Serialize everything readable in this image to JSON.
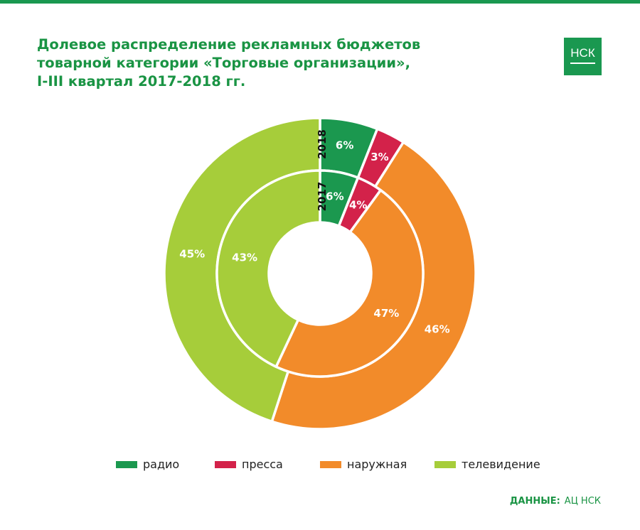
{
  "title_lines": [
    "Долевое распределение рекламных бюджетов",
    "товарной категории «Торговые организации»,",
    "I-III квартал 2017-2018 гг."
  ],
  "logo": "НСК",
  "source": {
    "label": "ДАННЫЕ:",
    "value": "АЦ НСК"
  },
  "chart_data": {
    "type": "donut",
    "categories": [
      "радио",
      "пресса",
      "наружная",
      "телевидение"
    ],
    "colors": [
      "#1b984f",
      "#d3224a",
      "#f28b2a",
      "#a6cd3a"
    ],
    "series": [
      {
        "name": "2018",
        "ring": "outer",
        "values": [
          6,
          3,
          46,
          45
        ]
      },
      {
        "name": "2017",
        "ring": "inner",
        "values": [
          6,
          4,
          47,
          43
        ]
      }
    ],
    "legend": "bottom"
  }
}
